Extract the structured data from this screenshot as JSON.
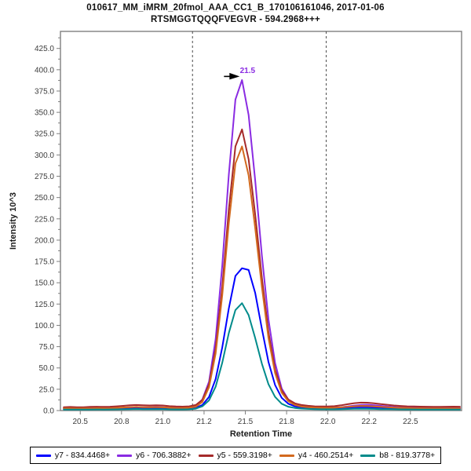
{
  "title": {
    "line1": "010617_MM_iMRM_20fmol_AAA_CC1_B_170106161046, 2017-01-06",
    "line2": "RTSMGGTQQQFVEGVR - 594.2968+++"
  },
  "chart_data": {
    "type": "line",
    "title": "010617_MM_iMRM_20fmol_AAA_CC1_B_170106161046, 2017-01-06",
    "subtitle": "RTSMGGTQQQFVEGVR - 594.2968+++",
    "xlabel": "Retention Time",
    "ylabel": "Intensity 10^3",
    "xlim": [
      20.38,
      22.81
    ],
    "ylim": [
      0,
      445
    ],
    "grid": false,
    "legend_position": "bottom",
    "frame_color": "#7f7f7f",
    "boundary_color": "#4a4a4a",
    "x_ticks": {
      "values": [
        20.5,
        20.75,
        21.0,
        21.25,
        21.5,
        21.75,
        22.0,
        22.25,
        22.5
      ],
      "labels": [
        "20.5",
        "20.8",
        "21.0",
        "21.2",
        "21.5",
        "21.8",
        "22.0",
        "22.2",
        "22.5"
      ]
    },
    "y_ticks": {
      "min": 0,
      "max": 425,
      "step": 25,
      "minor_step": 12.5,
      "decimals": 1
    },
    "integration_boundaries": [
      21.18,
      21.99
    ],
    "peak_annotation": {
      "label": "21.5",
      "x": 21.48,
      "y": 388,
      "color": "#8A2BE2"
    },
    "x": [
      20.4,
      20.44,
      20.48,
      20.52,
      20.56,
      20.6,
      20.64,
      20.68,
      20.72,
      20.76,
      20.8,
      20.84,
      20.88,
      20.92,
      20.96,
      21.0,
      21.04,
      21.08,
      21.12,
      21.16,
      21.2,
      21.24,
      21.28,
      21.32,
      21.36,
      21.4,
      21.44,
      21.48,
      21.52,
      21.56,
      21.6,
      21.64,
      21.68,
      21.72,
      21.76,
      21.8,
      21.84,
      21.88,
      21.92,
      21.96,
      22.0,
      22.04,
      22.08,
      22.12,
      22.16,
      22.2,
      22.24,
      22.28,
      22.32,
      22.36,
      22.4,
      22.44,
      22.48,
      22.52,
      22.56,
      22.6,
      22.64,
      22.68,
      22.72,
      22.76,
      22.8
    ],
    "series": [
      {
        "id": "y7",
        "name": "y7 - 834.4468+",
        "color": "#0000FF",
        "values": [
          2,
          2,
          1.9,
          2,
          2.1,
          2.2,
          2.1,
          2.2,
          2.4,
          2.7,
          3,
          3.1,
          3,
          2.9,
          3,
          2.8,
          2.5,
          2.3,
          2.3,
          2.5,
          3.2,
          6.5,
          16,
          37,
          74,
          120,
          158,
          167,
          165,
          138,
          96,
          57,
          30,
          15,
          8,
          5,
          3.8,
          3.2,
          2.9,
          2.7,
          2.6,
          2.7,
          3,
          3.4,
          3.8,
          4,
          3.9,
          3.6,
          3.3,
          3,
          2.8,
          2.6,
          2.5,
          2.4,
          2.3,
          2.2,
          2.2,
          2.2,
          2.2,
          2.2,
          2.2
        ]
      },
      {
        "id": "y6",
        "name": "y6 - 706.3882+",
        "color": "#8A2BE2",
        "values": [
          3,
          3,
          2.8,
          3,
          3,
          3.2,
          3,
          3,
          3.2,
          3.5,
          4,
          4.2,
          4,
          4,
          4.2,
          4,
          3.5,
          3.5,
          3.5,
          4,
          5.5,
          13,
          34,
          84,
          170,
          277,
          365,
          388,
          347,
          270,
          182,
          107,
          56,
          26,
          13,
          7.7,
          5.3,
          4.4,
          3.8,
          3.6,
          3.5,
          3.6,
          4,
          4.8,
          5.8,
          6.5,
          6.8,
          6.3,
          5.5,
          4.8,
          4.2,
          3.8,
          3.5,
          3.3,
          3.2,
          3,
          3,
          3,
          3,
          3,
          3
        ]
      },
      {
        "id": "y5",
        "name": "y5 - 559.3198+",
        "color": "#A52A2A",
        "values": [
          4,
          4.2,
          4,
          4,
          4.3,
          4.5,
          4.3,
          4.5,
          5,
          5.5,
          6.2,
          6.5,
          6.3,
          6,
          6.3,
          6,
          5.2,
          4.8,
          4.6,
          5,
          6.5,
          12.5,
          31,
          73,
          145,
          236,
          310,
          330,
          295,
          230,
          156,
          92,
          48,
          23.5,
          13,
          8.5,
          6.5,
          5.6,
          5,
          4.8,
          4.8,
          5.2,
          6.2,
          7.5,
          8.7,
          9.3,
          9.2,
          8.5,
          7.6,
          6.8,
          6,
          5.4,
          5,
          4.8,
          4.6,
          4.5,
          4.4,
          4.4,
          4.5,
          4.6,
          4.5
        ]
      },
      {
        "id": "y4",
        "name": "y4 - 460.2514+",
        "color": "#D2691E",
        "values": [
          2.5,
          2.5,
          2.4,
          2.5,
          2.6,
          2.8,
          2.7,
          2.8,
          3.2,
          3.6,
          4,
          4.2,
          4,
          3.9,
          4,
          3.8,
          3.3,
          3,
          3,
          3.3,
          4.5,
          10,
          27.5,
          67,
          135,
          220,
          290,
          310,
          276,
          214,
          145,
          85,
          44,
          21,
          11,
          6.5,
          4.7,
          3.9,
          3.4,
          3.2,
          3.1,
          3.3,
          3.8,
          4.4,
          5,
          5.4,
          5.3,
          4.9,
          4.4,
          3.9,
          3.5,
          3.2,
          3,
          2.8,
          2.7,
          2.6,
          2.6,
          2.5,
          2.5,
          2.6,
          2.5
        ]
      },
      {
        "id": "b8",
        "name": "b8 - 819.3778+",
        "color": "#008B8B",
        "values": [
          1.2,
          1.2,
          1.1,
          1.2,
          1.2,
          1.3,
          1.2,
          1.3,
          1.4,
          1.5,
          1.7,
          1.8,
          1.7,
          1.6,
          1.7,
          1.6,
          1.4,
          1.3,
          1.3,
          1.5,
          2.2,
          5,
          12,
          28,
          56,
          91,
          118,
          126,
          112,
          85,
          55,
          31,
          16,
          8,
          4.5,
          3,
          2.3,
          1.9,
          1.7,
          1.5,
          1.5,
          1.5,
          1.6,
          1.8,
          2,
          2.1,
          2,
          1.9,
          1.7,
          1.6,
          1.5,
          1.4,
          1.3,
          1.3,
          1.2,
          1.2,
          1.2,
          1.2,
          1.2,
          1.2,
          1.2
        ]
      }
    ]
  }
}
